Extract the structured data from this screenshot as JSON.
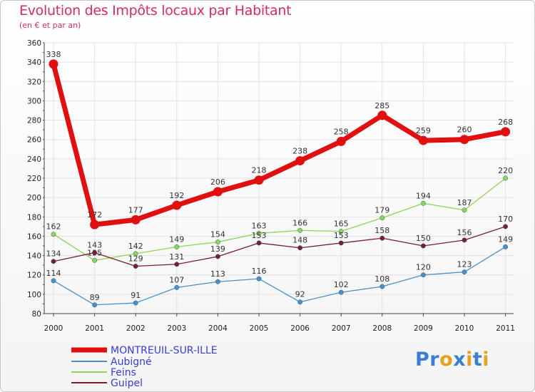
{
  "header": {
    "title": "Evolution des Impôts locaux par Habitant",
    "subtitle": "(en € et par an)"
  },
  "logo": {
    "text": "Proxiti",
    "letters": [
      "P",
      "r",
      "o",
      "x",
      "i",
      "t",
      "i"
    ]
  },
  "colors": {
    "title": "#d4296a",
    "grid": "#e3e3e3",
    "axis": "#444444",
    "legend_text": "#3b3bd8",
    "logo_letters": [
      "#3b7fd4",
      "#3b7fd4",
      "#e8a020",
      "#3b7fd4",
      "#e8a020",
      "#3b7fd4",
      "#e8a020"
    ]
  },
  "chart_data": {
    "type": "line",
    "title": "Evolution des Impôts locaux par Habitant",
    "subtitle": "(en € et par an)",
    "xlabel": "",
    "ylabel": "",
    "x": [
      "2000",
      "2001",
      "2002",
      "2003",
      "2004",
      "2005",
      "2006",
      "2007",
      "2008",
      "2009",
      "2010",
      "2011"
    ],
    "ylim": [
      80,
      360
    ],
    "yticks": [
      "80",
      "100",
      "120",
      "140",
      "160",
      "180",
      "200",
      "220",
      "240",
      "260",
      "280",
      "300",
      "320",
      "340",
      "360"
    ],
    "grid": true,
    "legend_position": "bottom-left",
    "series": [
      {
        "name": "MONTREUIL-SUR-ILLE",
        "color": "#e01010",
        "width": "thick",
        "values": [
          338,
          172,
          177,
          192,
          206,
          218,
          238,
          258,
          285,
          259,
          260,
          268
        ],
        "labels": [
          "338",
          "172",
          "177",
          "192",
          "206",
          "218",
          "238",
          "258",
          "285",
          "259",
          "260",
          "268"
        ]
      },
      {
        "name": "Aubigné",
        "color": "#4a90c8",
        "width": "thin",
        "values": [
          114,
          89,
          91,
          107,
          113,
          116,
          92,
          102,
          108,
          120,
          123,
          149
        ],
        "labels": [
          "114",
          "89",
          "91",
          "107",
          "113",
          "116",
          "92",
          "102",
          "108",
          "120",
          "123",
          "149"
        ]
      },
      {
        "name": "Feins",
        "color": "#8ed455",
        "width": "thin",
        "values": [
          162,
          135,
          142,
          149,
          154,
          163,
          166,
          165,
          179,
          194,
          187,
          220
        ],
        "labels": [
          "162",
          "135",
          "142",
          "149",
          "154",
          "163",
          "166",
          "165",
          "179",
          "194",
          "187",
          "220"
        ]
      },
      {
        "name": "Guipel",
        "color": "#7a1e2a",
        "width": "thin",
        "values": [
          134,
          143,
          129,
          131,
          139,
          153,
          148,
          153,
          158,
          150,
          156,
          170
        ],
        "labels": [
          "134",
          "143",
          "129",
          "131",
          "139",
          "153",
          "148",
          "153",
          "158",
          "150",
          "156",
          "170"
        ]
      }
    ]
  }
}
